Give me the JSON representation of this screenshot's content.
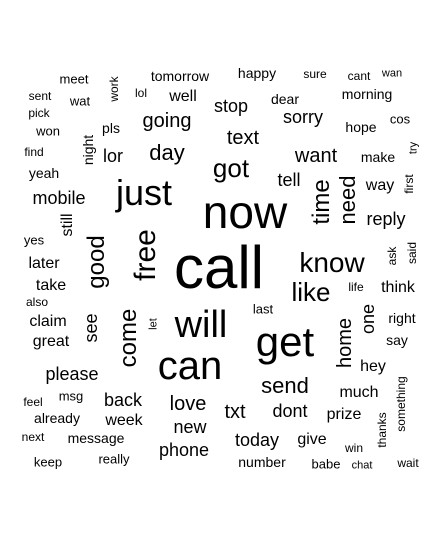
{
  "words": [
    "call",
    "now",
    "get",
    "can",
    "will",
    "just",
    "free",
    "know",
    "like",
    "come",
    "got",
    "good",
    "time",
    "need",
    "day",
    "going",
    "text",
    "want",
    "send",
    "love",
    "home",
    "sorry",
    "stop",
    "mobile",
    "txt",
    "one",
    "dont",
    "today",
    "tell",
    "reply",
    "see",
    "new",
    "phone",
    "back",
    "please",
    "week",
    "well",
    "lor",
    "way",
    "give",
    "much",
    "later",
    "take",
    "claim",
    "great",
    "still",
    "think",
    "prize",
    "hey",
    "night",
    "tomorrow",
    "happy",
    "dear",
    "morning",
    "hope",
    "pls",
    "yeah",
    "make",
    "right",
    "say",
    "last",
    "number",
    "message",
    "already",
    "keep",
    "really",
    "wat",
    "meet",
    "sent",
    "pick",
    "won",
    "find",
    "yes",
    "also",
    "work",
    "lol",
    "sure",
    "cant",
    "wan",
    "cos",
    "try",
    "first",
    "ask",
    "said",
    "life",
    "let",
    "feel",
    "msg",
    "next",
    "babe",
    "chat",
    "win",
    "thanks",
    "something",
    "wait"
  ]
}
